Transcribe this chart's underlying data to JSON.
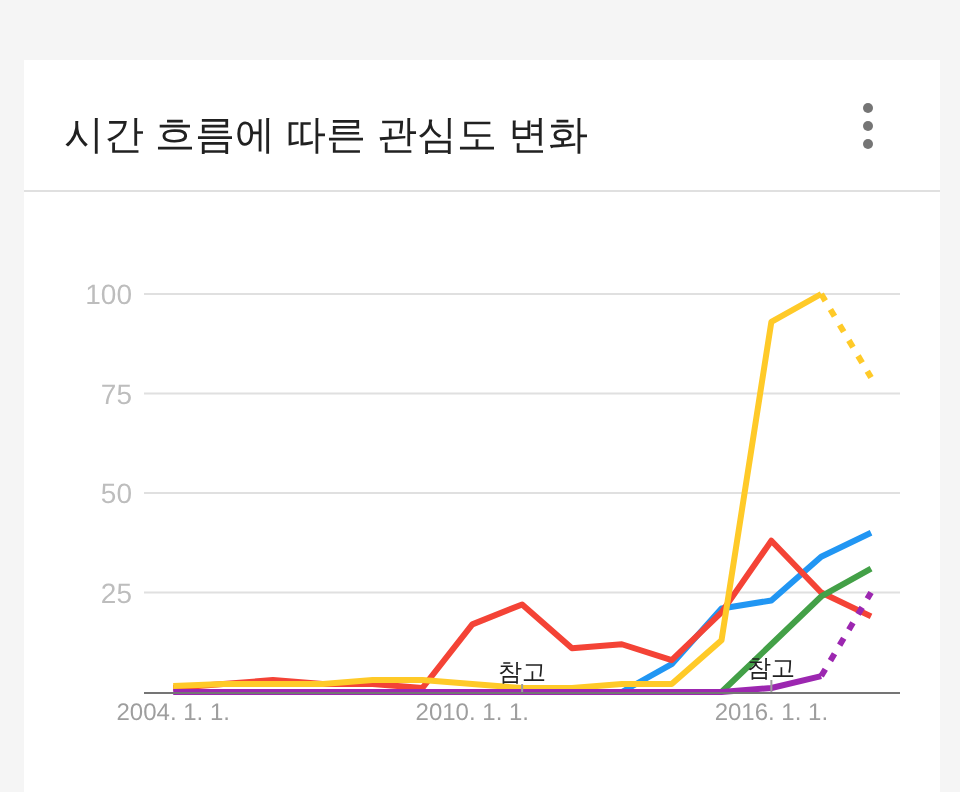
{
  "chart_data": {
    "type": "line",
    "title": "시간 흐름에 따른 관심도 변화",
    "x": [
      "2004-01-01",
      "2005-01-01",
      "2006-01-01",
      "2007-01-01",
      "2008-01-01",
      "2009-01-01",
      "2010-01-01",
      "2011-01-01",
      "2012-01-01",
      "2013-01-01",
      "2014-01-01",
      "2015-01-01",
      "2016-01-01",
      "2017-01-01",
      "2018-01-01"
    ],
    "series": [
      {
        "color": "#2196f3",
        "values": [
          null,
          null,
          null,
          null,
          null,
          null,
          null,
          null,
          null,
          0,
          7,
          21,
          23,
          34,
          40
        ]
      },
      {
        "color": "#f44336",
        "values": [
          1,
          2,
          3,
          2,
          2,
          1,
          17,
          22,
          11,
          12,
          8,
          20,
          38,
          25,
          19
        ]
      },
      {
        "color": "#43a047",
        "values": [
          null,
          null,
          null,
          null,
          null,
          null,
          null,
          null,
          null,
          null,
          null,
          0,
          12,
          24,
          31
        ]
      },
      {
        "color": "#ffca28",
        "x": [
          "2004-01-01",
          "2005-01-01",
          "2006-01-01",
          "2007-01-01",
          "2008-01-01",
          "2009-01-01",
          "2010-01-01",
          "2011-01-01",
          "2012-01-01",
          "2013-01-01",
          "2014-01-01",
          "2015-01-01",
          "2016-01-01",
          "2017-01-01"
        ],
        "values": [
          1.5,
          2,
          2,
          2,
          3,
          3,
          2,
          1,
          1,
          2,
          2,
          13,
          93,
          100
        ]
      },
      {
        "color": "#ffca28",
        "x": [
          "2017-01-01",
          "2018-01-01"
        ],
        "values": [
          100,
          79
        ],
        "line_style": "dotted"
      },
      {
        "color": "#9c27b0",
        "x": [
          "2004-01-01",
          "2005-01-01",
          "2006-01-01",
          "2007-01-01",
          "2008-01-01",
          "2009-01-01",
          "2010-01-01",
          "2011-01-01",
          "2012-01-01",
          "2013-01-01",
          "2014-01-01",
          "2015-01-01",
          "2016-01-01",
          "2017-01-01"
        ],
        "values": [
          0,
          0,
          0,
          0,
          0,
          0,
          0,
          0,
          0,
          0,
          0,
          0,
          1,
          4
        ]
      },
      {
        "color": "#9c27b0",
        "x": [
          "2017-01-01",
          "2018-01-01"
        ],
        "values": [
          4,
          25
        ],
        "line_style": "dotted"
      }
    ],
    "xlim": [
      "2003-06-01",
      "2018-08-01"
    ],
    "ylim": [
      0,
      100
    ],
    "xticks": [
      {
        "value": "2004-01-01",
        "label": "2004. 1. 1."
      },
      {
        "value": "2010-01-01",
        "label": "2010. 1. 1."
      },
      {
        "value": "2016-01-01",
        "label": "2016. 1. 1."
      }
    ],
    "yticks": [
      25,
      50,
      75,
      100
    ],
    "grid": "y",
    "line_style": "solid",
    "marker": "none",
    "annotations": [
      {
        "text": "참고",
        "x": "2011-01-01",
        "y": 0
      },
      {
        "text": "참고",
        "x": "2016-01-01",
        "y": 1
      }
    ]
  }
}
